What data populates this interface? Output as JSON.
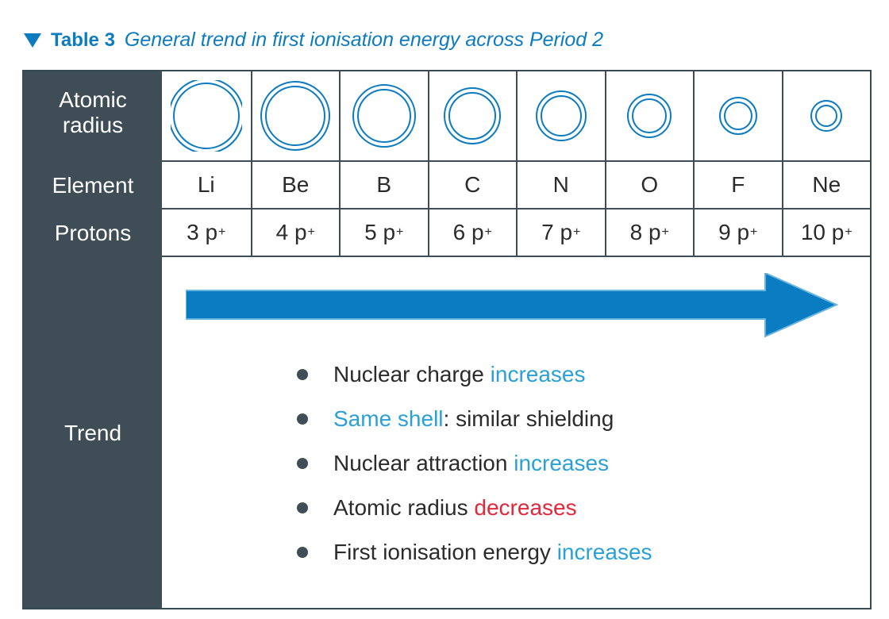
{
  "caption": {
    "label": "Table 3",
    "title": "General trend in first ionisation energy across Period 2"
  },
  "row_headers": {
    "radius_line1": "Atomic",
    "radius_line2": "radius",
    "element": "Element",
    "protons": "Protons",
    "trend": "Trend"
  },
  "elements": [
    {
      "symbol": "Li",
      "protons": "3 p",
      "radius_rank": 8
    },
    {
      "symbol": "Be",
      "protons": "4 p",
      "radius_rank": 7
    },
    {
      "symbol": "B",
      "protons": "5 p",
      "radius_rank": 6
    },
    {
      "symbol": "C",
      "protons": "6 p",
      "radius_rank": 5
    },
    {
      "symbol": "N",
      "protons": "7 p",
      "radius_rank": 4
    },
    {
      "symbol": "O",
      "protons": "8 p",
      "radius_rank": 3
    },
    {
      "symbol": "F",
      "protons": "9 p",
      "radius_rank": 2
    },
    {
      "symbol": "Ne",
      "protons": "10 p",
      "radius_rank": 1
    }
  ],
  "proton_charge_sign": "+",
  "trend_points": [
    {
      "lead": "Nuclear charge ",
      "emphasis": "increases",
      "emphasis_color": "blue",
      "trail": ""
    },
    {
      "lead": "",
      "emphasis": "Same shell",
      "emphasis_color": "blue",
      "trail": ": similar shielding"
    },
    {
      "lead": "Nuclear attraction ",
      "emphasis": "increases",
      "emphasis_color": "blue",
      "trail": ""
    },
    {
      "lead": "Atomic radius ",
      "emphasis": "decreases",
      "emphasis_color": "red",
      "trail": ""
    },
    {
      "lead": "First ionisation energy ",
      "emphasis": "increases",
      "emphasis_color": "blue",
      "trail": ""
    }
  ],
  "colors": {
    "accent_blue": "#0c7bc0",
    "emphasis_blue": "#2aa0d8",
    "emphasis_red": "#e2283a",
    "header_fill": "#3e4d56",
    "arrow_fill": "#0a7cc1"
  }
}
